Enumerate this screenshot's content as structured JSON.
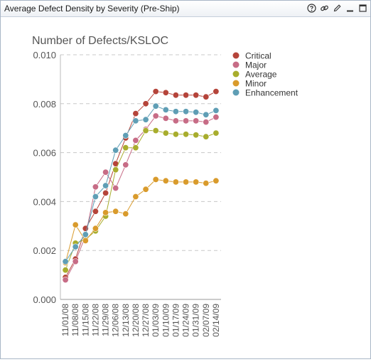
{
  "window": {
    "title": "Average Defect Density by Severity (Pre-Ship)",
    "icons": [
      "help-icon",
      "link-icon",
      "edit-icon",
      "minimize-icon",
      "maximize-icon"
    ]
  },
  "chart_data": {
    "type": "line",
    "title": "Number of Defects/KSLOC",
    "xlabel": "",
    "ylabel": "",
    "categories": [
      "11/01/08",
      "11/08/08",
      "11/15/08",
      "11/22/08",
      "11/29/08",
      "12/06/08",
      "12/13/08",
      "12/20/08",
      "12/27/08",
      "01/03/09",
      "01/10/09",
      "01/17/09",
      "01/24/09",
      "01/31/09",
      "02/07/09",
      "02/14/09"
    ],
    "ylim": [
      0,
      0.01
    ],
    "yticks": [
      "0.000",
      "0.002",
      "0.004",
      "0.006",
      "0.008",
      "0.010"
    ],
    "ytick_values": [
      0,
      0.002,
      0.004,
      0.006,
      0.008,
      0.01
    ],
    "grid": "horizontal-dashed",
    "legend_position": "top-right",
    "series": [
      {
        "name": "Critical",
        "color": "#b5443a",
        "values": [
          0.0009,
          0.00165,
          0.0029,
          0.0036,
          0.00435,
          0.00555,
          0.0066,
          0.0076,
          0.008,
          0.0085,
          0.00845,
          0.00835,
          0.00835,
          0.00835,
          0.00828,
          0.0085
        ]
      },
      {
        "name": "Major",
        "color": "#c76c86",
        "values": [
          0.0008,
          0.00155,
          0.0026,
          0.0046,
          0.0052,
          0.00455,
          0.0055,
          0.0065,
          0.00695,
          0.0075,
          0.0074,
          0.0073,
          0.0073,
          0.0073,
          0.00725,
          0.00745
        ]
      },
      {
        "name": "Average",
        "color": "#a8ad2d",
        "values": [
          0.0012,
          0.0023,
          0.00245,
          0.0028,
          0.0034,
          0.0053,
          0.0062,
          0.0062,
          0.0069,
          0.0069,
          0.0068,
          0.00675,
          0.00675,
          0.00672,
          0.00665,
          0.0068
        ]
      },
      {
        "name": "Minor",
        "color": "#d99b2c",
        "values": [
          0.0015,
          0.00305,
          0.0024,
          0.0029,
          0.00355,
          0.0036,
          0.0035,
          0.0042,
          0.0045,
          0.0049,
          0.00485,
          0.0048,
          0.0048,
          0.0048,
          0.00475,
          0.00485
        ]
      },
      {
        "name": "Enhancement",
        "color": "#5f9eb5",
        "values": [
          0.00155,
          0.00215,
          0.00265,
          0.0042,
          0.00465,
          0.0061,
          0.0067,
          0.0073,
          0.00735,
          0.0079,
          0.00775,
          0.00768,
          0.00768,
          0.00765,
          0.00755,
          0.00772
        ]
      }
    ]
  }
}
